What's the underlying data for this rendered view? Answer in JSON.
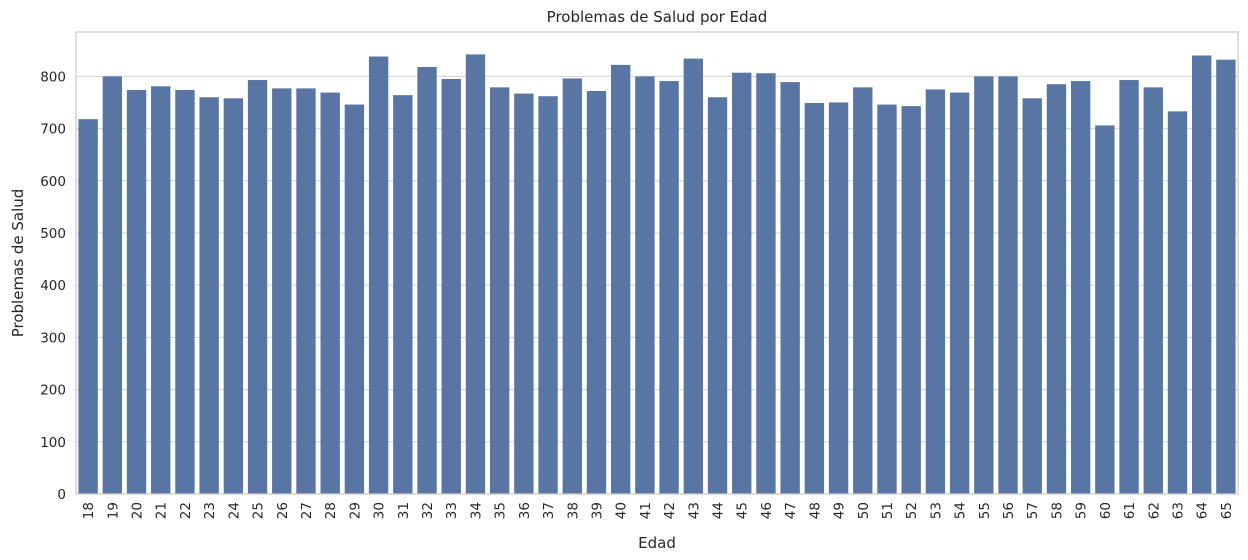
{
  "chart_data": {
    "type": "bar",
    "title": "Problemas de Salud por Edad",
    "xlabel": "Edad",
    "ylabel": "Problemas de Salud",
    "categories": [
      "18",
      "19",
      "20",
      "21",
      "22",
      "23",
      "24",
      "25",
      "26",
      "27",
      "28",
      "29",
      "30",
      "31",
      "32",
      "33",
      "34",
      "35",
      "36",
      "37",
      "38",
      "39",
      "40",
      "41",
      "42",
      "43",
      "44",
      "45",
      "46",
      "47",
      "48",
      "49",
      "50",
      "51",
      "52",
      "53",
      "54",
      "55",
      "56",
      "57",
      "58",
      "59",
      "60",
      "61",
      "62",
      "63",
      "64",
      "65"
    ],
    "values": [
      718,
      800,
      774,
      781,
      774,
      760,
      758,
      793,
      777,
      777,
      769,
      746,
      838,
      764,
      818,
      795,
      842,
      779,
      767,
      762,
      796,
      772,
      822,
      800,
      791,
      834,
      760,
      807,
      806,
      789,
      749,
      750,
      779,
      746,
      743,
      775,
      769,
      800,
      800,
      758,
      785,
      791,
      706,
      793,
      779,
      733,
      840,
      832
    ],
    "ylim": [
      0,
      885
    ],
    "yticks": [
      0,
      100,
      200,
      300,
      400,
      500,
      600,
      700,
      800
    ],
    "grid": "horizontal",
    "bar_color": "#5975a4",
    "xtick_rotation": -90
  }
}
